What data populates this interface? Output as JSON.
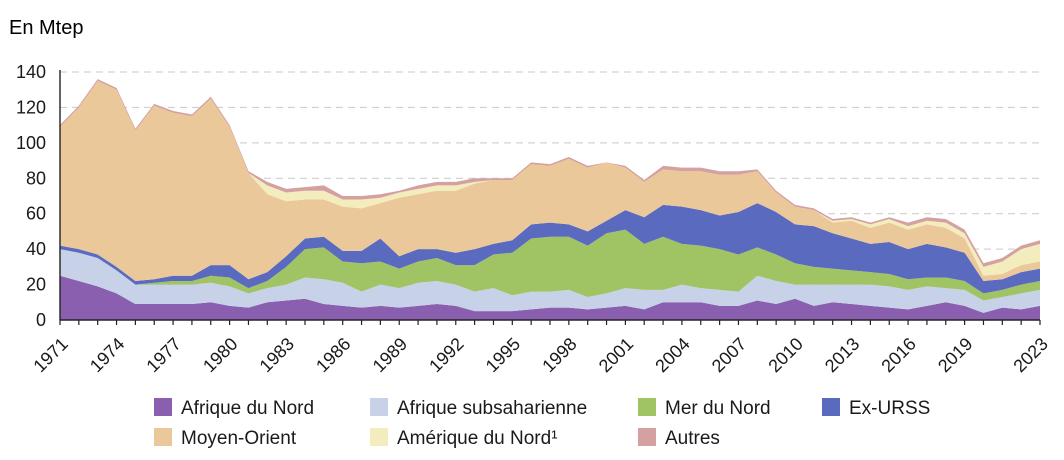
{
  "chart_data": {
    "type": "area",
    "stacked": true,
    "unit_label": "En Mtep",
    "ylim": [
      0,
      140
    ],
    "yticks": [
      0,
      20,
      40,
      60,
      80,
      100,
      120,
      140
    ],
    "xticks": [
      1971,
      1974,
      1977,
      1980,
      1983,
      1986,
      1989,
      1992,
      1995,
      1998,
      2001,
      2004,
      2007,
      2010,
      2013,
      2016,
      2019,
      2023
    ],
    "grid": true,
    "legend_position": "bottom",
    "x": [
      1971,
      1972,
      1973,
      1974,
      1975,
      1976,
      1977,
      1978,
      1979,
      1980,
      1981,
      1982,
      1983,
      1984,
      1985,
      1986,
      1987,
      1988,
      1989,
      1990,
      1991,
      1992,
      1993,
      1994,
      1995,
      1996,
      1997,
      1998,
      1999,
      2000,
      2001,
      2002,
      2003,
      2004,
      2005,
      2006,
      2007,
      2008,
      2009,
      2010,
      2011,
      2012,
      2013,
      2014,
      2015,
      2016,
      2017,
      2018,
      2019,
      2020,
      2021,
      2022,
      2023
    ],
    "series": [
      {
        "name": "Afrique du Nord",
        "color": "#8a5fb0",
        "values": [
          25,
          22,
          19,
          15,
          9,
          9,
          9,
          9,
          10,
          8,
          7,
          10,
          11,
          12,
          9,
          8,
          7,
          8,
          7,
          8,
          9,
          8,
          5,
          5,
          5,
          6,
          7,
          7,
          6,
          7,
          8,
          6,
          10,
          10,
          10,
          8,
          8,
          11,
          9,
          12,
          8,
          10,
          9,
          8,
          7,
          6,
          8,
          10,
          8,
          4,
          7,
          6,
          8
        ]
      },
      {
        "name": "Afrique subsaharienne",
        "color": "#c7d1e8",
        "values": [
          15,
          16,
          16,
          13,
          11,
          11,
          11,
          11,
          11,
          11,
          8,
          8,
          9,
          12,
          14,
          13,
          9,
          12,
          11,
          13,
          13,
          12,
          11,
          13,
          9,
          10,
          9,
          10,
          7,
          8,
          10,
          11,
          7,
          10,
          8,
          9,
          8,
          14,
          13,
          8,
          12,
          10,
          11,
          12,
          12,
          11,
          11,
          8,
          9,
          7,
          6,
          9,
          9
        ]
      },
      {
        "name": "Mer du Nord",
        "color": "#a0c464",
        "values": [
          0,
          0,
          0,
          0,
          0,
          1,
          2,
          2,
          4,
          5,
          3,
          4,
          10,
          16,
          18,
          12,
          16,
          13,
          11,
          12,
          13,
          11,
          15,
          19,
          24,
          30,
          31,
          30,
          29,
          34,
          33,
          26,
          30,
          23,
          24,
          23,
          21,
          16,
          15,
          12,
          10,
          9,
          8,
          7,
          7,
          6,
          5,
          6,
          5,
          4,
          4,
          5,
          5
        ]
      },
      {
        "name": "Ex-URSS",
        "color": "#5a6abf",
        "values": [
          2,
          2,
          2,
          2,
          2,
          2,
          3,
          3,
          6,
          7,
          5,
          5,
          6,
          6,
          6,
          6,
          7,
          13,
          7,
          7,
          5,
          7,
          9,
          6,
          7,
          8,
          8,
          7,
          8,
          7,
          11,
          15,
          18,
          21,
          20,
          19,
          24,
          25,
          24,
          22,
          23,
          20,
          18,
          16,
          18,
          17,
          19,
          17,
          16,
          7,
          6,
          7,
          7
        ]
      },
      {
        "name": "Moyen-Orient",
        "color": "#eac89a",
        "values": [
          67,
          80,
          98,
          100,
          85,
          98,
          92,
          90,
          94,
          78,
          60,
          44,
          31,
          22,
          21,
          25,
          24,
          20,
          33,
          31,
          33,
          35,
          37,
          36,
          34,
          34,
          32,
          37,
          36,
          33,
          24,
          20,
          20,
          20,
          22,
          23,
          21,
          18,
          11,
          10,
          9,
          6,
          10,
          9,
          11,
          11,
          11,
          11,
          8,
          3,
          3,
          4,
          4
        ]
      },
      {
        "name": "Amérique du Nord¹",
        "color": "#f3ecbc",
        "values": [
          0,
          0,
          0,
          0,
          0,
          0,
          0,
          0,
          0,
          0,
          0,
          5,
          5,
          5,
          5,
          4,
          5,
          3,
          3,
          3,
          3,
          3,
          1,
          0,
          0,
          0,
          0,
          0,
          0,
          0,
          0,
          0,
          0,
          0,
          0,
          0,
          0,
          0,
          0,
          0,
          0,
          1,
          1,
          2,
          2,
          2,
          2,
          3,
          3,
          5,
          7,
          9,
          10
        ]
      },
      {
        "name": "Autres",
        "color": "#d4a0a0",
        "values": [
          1,
          1,
          1,
          1,
          1,
          1,
          1,
          1,
          1,
          1,
          1,
          2,
          2,
          2,
          3,
          2,
          2,
          2,
          1,
          2,
          2,
          2,
          2,
          1,
          1,
          1,
          1,
          1,
          1,
          0,
          1,
          1,
          2,
          2,
          2,
          2,
          2,
          1,
          1,
          1,
          1,
          1,
          1,
          1,
          1,
          2,
          2,
          2,
          2,
          2,
          2,
          2,
          2
        ]
      }
    ]
  }
}
